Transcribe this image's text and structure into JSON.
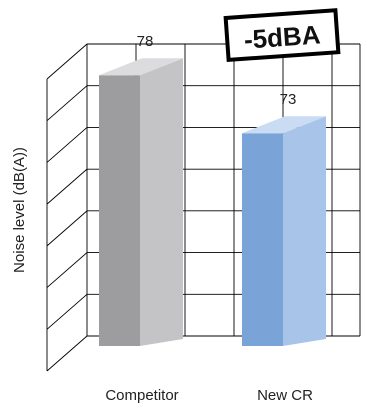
{
  "chart_data": {
    "type": "bar",
    "categories": [
      "Competitor",
      "New CR"
    ],
    "values": [
      78,
      73
    ],
    "data_labels": [
      "78",
      "73"
    ],
    "ylabel": "Noise level (dB(A))",
    "ylim": [
      60,
      82
    ],
    "grid": true,
    "annotation": "-5dBA",
    "colors": {
      "bar_front": [
        "#9d9d9f",
        "#7aa3d8"
      ],
      "bar_side": [
        "#c4c4c7",
        "#a8c4e8"
      ],
      "bar_top": [
        "#dcdcde",
        "#c9dcf4"
      ],
      "grid": "#000000"
    }
  }
}
